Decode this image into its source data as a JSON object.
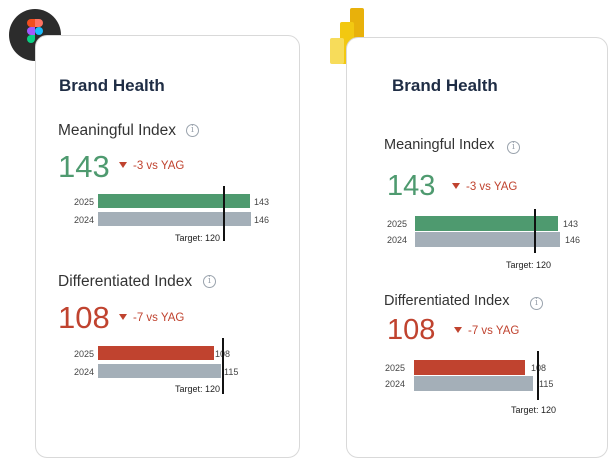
{
  "colors": {
    "green_bar": "#4e9a6f",
    "red_bar": "#c0432f",
    "gray_bar": "#a4afb8",
    "title": "#1f2d45"
  },
  "icons": {
    "left": "figma-app-icon",
    "right": "power-bi-app-icon"
  },
  "cards": [
    {
      "title": "Brand Health",
      "meaningful": {
        "label": "Meaningful Index",
        "value": "143",
        "delta": "-3 vs YAG",
        "rows": [
          {
            "year": "2025",
            "value": "143"
          },
          {
            "year": "2024",
            "value": "146"
          }
        ],
        "target": "Target: 120"
      },
      "differentiated": {
        "label": "Differentiated Index",
        "value": "108",
        "delta": "-7 vs YAG",
        "rows": [
          {
            "year": "2025",
            "value": "108"
          },
          {
            "year": "2024",
            "value": "115"
          }
        ],
        "target": "Target: 120"
      }
    },
    {
      "title": "Brand Health",
      "meaningful": {
        "label": "Meaningful Index",
        "value": "143",
        "delta": "-3 vs YAG",
        "rows": [
          {
            "year": "2025",
            "value": "143"
          },
          {
            "year": "2024",
            "value": "146"
          }
        ],
        "target": "Target: 120"
      },
      "differentiated": {
        "label": "Differentiated Index",
        "value": "108",
        "delta": "-7 vs YAG",
        "rows": [
          {
            "year": "2025",
            "value": "108"
          },
          {
            "year": "2024",
            "value": "115"
          }
        ],
        "target": "Target: 120"
      }
    }
  ]
}
